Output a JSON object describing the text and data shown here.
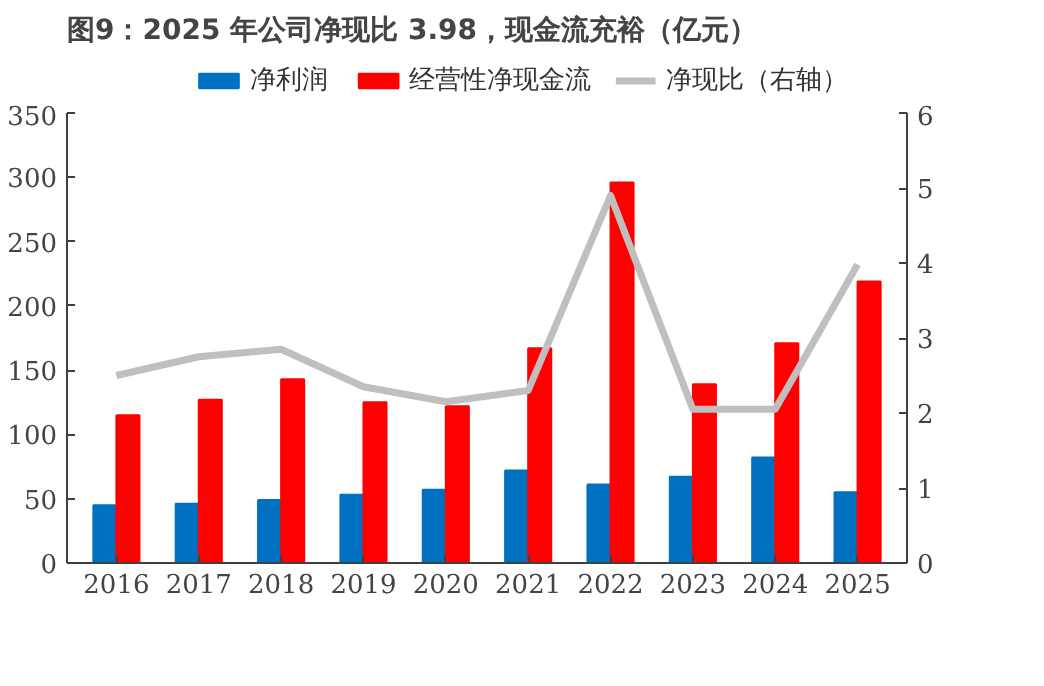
{
  "chart_data": {
    "type": "bar",
    "title": "图9：2025 年公司净现比 3.98，现金流充裕（亿元）",
    "categories": [
      "2016",
      "2017",
      "2018",
      "2019",
      "2020",
      "2021",
      "2022",
      "2023",
      "2024",
      "2025"
    ],
    "series": [
      {
        "name": "净利润",
        "color": "#0070c0",
        "values": [
          45,
          46,
          49,
          53,
          57,
          72,
          61,
          67,
          82,
          55
        ]
      },
      {
        "name": "经营性净现金流",
        "color": "#ff0000",
        "values": [
          115,
          127,
          143,
          125,
          122,
          167,
          296,
          139,
          171,
          219
        ]
      },
      {
        "name": "净现比（右轴）",
        "color": "#bfbfbf",
        "type": "line",
        "axis": "y2",
        "values": [
          2.5,
          2.75,
          2.85,
          2.35,
          2.15,
          2.3,
          4.9,
          2.05,
          2.05,
          3.98
        ]
      }
    ],
    "ylim": [
      0,
      350
    ],
    "yticks": [
      0,
      50,
      100,
      150,
      200,
      250,
      300,
      350
    ],
    "y2lim": [
      0,
      6
    ],
    "y2ticks": [
      0,
      1,
      2,
      3,
      4,
      5,
      6
    ],
    "legend": "top",
    "grid": false
  }
}
